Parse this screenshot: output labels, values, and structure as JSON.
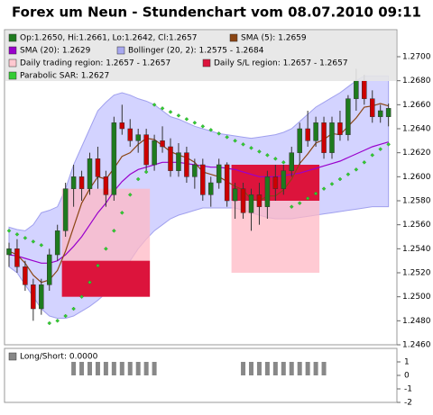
{
  "chart_data": [
    {
      "type": "candlestick",
      "title": "Forex um Neun - Stundenchart vom 08.07.2010 09:11",
      "legend": [
        {
          "text": "Op:1.2650, Hi:1.2661, Lo:1.2642, Cl:1.2657",
          "color": "#1e7b1e"
        },
        {
          "text": "SMA (5): 1.2659",
          "color": "#8b4513"
        },
        {
          "text": "SMA (20): 1.2629",
          "color": "#9900cc"
        },
        {
          "text": "Bollinger (20, 2): 1.2575 - 1.2684",
          "color": "#a8a8f0"
        },
        {
          "text": "Daily trading region: 1.2657 - 1.2657",
          "color": "#ffc8d0"
        },
        {
          "text": "Daily S/L region: 1.2657 - 1.2657",
          "color": "#dc143c"
        },
        {
          "text": "Parabolic SAR: 1.2627",
          "color": "#33cc33"
        }
      ],
      "up_color": "#1e7b1e",
      "down_color": "#cc0000",
      "open": [
        1.2535,
        1.254,
        1.2525,
        1.251,
        1.249,
        1.251,
        1.2535,
        1.2555,
        1.259,
        1.26,
        1.259,
        1.2615,
        1.26,
        1.2585,
        1.2645,
        1.264,
        1.263,
        1.2635,
        1.261,
        1.263,
        1.2625,
        1.2605,
        1.262,
        1.26,
        1.261,
        1.2585,
        1.2595,
        1.261,
        1.258,
        1.259,
        1.257,
        1.2585,
        1.2575,
        1.26,
        1.259,
        1.2605,
        1.262,
        1.264,
        1.263,
        1.2645,
        1.262,
        1.2645,
        1.2635,
        1.2665,
        1.268,
        1.2665,
        1.265,
        1.265
      ],
      "high": [
        1.2545,
        1.2548,
        1.253,
        1.2515,
        1.2515,
        1.254,
        1.256,
        1.2595,
        1.261,
        1.2605,
        1.262,
        1.2625,
        1.2605,
        1.265,
        1.266,
        1.2648,
        1.264,
        1.264,
        1.2635,
        1.2642,
        1.2632,
        1.2628,
        1.2625,
        1.2615,
        1.2615,
        1.26,
        1.2615,
        1.2612,
        1.2595,
        1.2595,
        1.259,
        1.2595,
        1.2605,
        1.261,
        1.261,
        1.2625,
        1.2645,
        1.2655,
        1.265,
        1.265,
        1.265,
        1.2655,
        1.2668,
        1.269,
        1.2685,
        1.2672,
        1.266,
        1.2661
      ],
      "low": [
        1.2525,
        1.252,
        1.2505,
        1.248,
        1.2485,
        1.2505,
        1.253,
        1.255,
        1.2575,
        1.258,
        1.2585,
        1.259,
        1.2575,
        1.258,
        1.2635,
        1.2625,
        1.262,
        1.2605,
        1.2605,
        1.262,
        1.26,
        1.26,
        1.2595,
        1.259,
        1.258,
        1.2575,
        1.259,
        1.2575,
        1.2565,
        1.2565,
        1.2555,
        1.256,
        1.2565,
        1.258,
        1.2585,
        1.26,
        1.261,
        1.2625,
        1.2625,
        1.2615,
        1.2615,
        1.263,
        1.263,
        1.2655,
        1.266,
        1.2645,
        1.2645,
        1.2642
      ],
      "close": [
        1.254,
        1.2525,
        1.251,
        1.249,
        1.251,
        1.2535,
        1.2555,
        1.259,
        1.26,
        1.259,
        1.2615,
        1.26,
        1.2585,
        1.2645,
        1.264,
        1.263,
        1.2635,
        1.261,
        1.263,
        1.2625,
        1.2605,
        1.262,
        1.26,
        1.261,
        1.2585,
        1.2595,
        1.261,
        1.258,
        1.259,
        1.257,
        1.2585,
        1.2575,
        1.26,
        1.259,
        1.2605,
        1.262,
        1.264,
        1.263,
        1.2645,
        1.262,
        1.2645,
        1.2635,
        1.2665,
        1.268,
        1.2665,
        1.265,
        1.2655,
        1.2657
      ],
      "sma5": {
        "color": "#8b4513",
        "values": [
          1.2538,
          1.2535,
          1.2528,
          1.2518,
          1.2512,
          1.2514,
          1.2522,
          1.2538,
          1.2558,
          1.2578,
          1.259,
          1.26,
          1.2598,
          1.2607,
          1.2617,
          1.262,
          1.2627,
          1.2632,
          1.2631,
          1.2626,
          1.2621,
          1.2618,
          1.2616,
          1.2612,
          1.2604,
          1.2602,
          1.26,
          1.2596,
          1.2592,
          1.2589,
          1.2581,
          1.258,
          1.2584,
          1.2584,
          1.2589,
          1.2598,
          1.2611,
          1.2619,
          1.2628,
          1.2631,
          1.2636,
          1.2635,
          1.2642,
          1.2649,
          1.2658,
          1.2659,
          1.2661,
          1.2659
        ]
      },
      "sma20": {
        "color": "#9900cc",
        "values": [
          1.2535,
          1.2534,
          1.2532,
          1.253,
          1.2528,
          1.2528,
          1.253,
          1.2535,
          1.2542,
          1.255,
          1.256,
          1.257,
          1.2578,
          1.2588,
          1.2596,
          1.2602,
          1.2606,
          1.2608,
          1.261,
          1.2612,
          1.2612,
          1.2612,
          1.2611,
          1.261,
          1.2609,
          1.2608,
          1.2608,
          1.2607,
          1.2606,
          1.2604,
          1.2602,
          1.26,
          1.26,
          1.26,
          1.2601,
          1.2602,
          1.2603,
          1.2605,
          1.2607,
          1.2609,
          1.2611,
          1.2613,
          1.2616,
          1.2619,
          1.2622,
          1.2625,
          1.2627,
          1.2629
        ]
      },
      "bollinger": {
        "color": "#c8c8ff",
        "stroke": "#a0a0ee",
        "upper": [
          1.2558,
          1.2556,
          1.2555,
          1.256,
          1.257,
          1.2572,
          1.2575,
          1.259,
          1.261,
          1.2625,
          1.264,
          1.2655,
          1.2662,
          1.2668,
          1.267,
          1.2668,
          1.2665,
          1.2663,
          1.266,
          1.2655,
          1.265,
          1.2648,
          1.2645,
          1.2642,
          1.264,
          1.2638,
          1.2636,
          1.2635,
          1.2634,
          1.2633,
          1.2632,
          1.2633,
          1.2634,
          1.2635,
          1.2637,
          1.264,
          1.2646,
          1.2652,
          1.2658,
          1.2662,
          1.2666,
          1.267,
          1.2675,
          1.268,
          1.2684,
          1.2684,
          1.2684,
          1.2684
        ],
        "lower": [
          1.2525,
          1.252,
          1.251,
          1.25,
          1.249,
          1.2484,
          1.2482,
          1.2482,
          1.2484,
          1.2488,
          1.2492,
          1.2497,
          1.2503,
          1.251,
          1.252,
          1.253,
          1.254,
          1.2548,
          1.2555,
          1.256,
          1.2565,
          1.2568,
          1.257,
          1.2572,
          1.2574,
          1.2574,
          1.2574,
          1.2574,
          1.2574,
          1.2572,
          1.257,
          1.2568,
          1.2566,
          1.2565,
          1.2565,
          1.2565,
          1.2566,
          1.2567,
          1.2568,
          1.2569,
          1.257,
          1.2571,
          1.2572,
          1.2573,
          1.2574,
          1.2575,
          1.2575,
          1.2575
        ]
      },
      "sar": {
        "color": "#33cc33",
        "values": [
          1.2555,
          1.2552,
          1.2549,
          1.2546,
          1.2543,
          1.2478,
          1.248,
          1.2484,
          1.249,
          1.25,
          1.2512,
          1.2526,
          1.254,
          1.2555,
          1.257,
          1.2585,
          1.2598,
          1.2604,
          1.266,
          1.2657,
          1.2654,
          1.2651,
          1.2648,
          1.2645,
          1.2642,
          1.2639,
          1.2636,
          1.2633,
          1.263,
          1.2627,
          1.2624,
          1.2621,
          1.2618,
          1.2615,
          1.2612,
          1.2575,
          1.2578,
          1.2582,
          1.2586,
          1.259,
          1.2594,
          1.2598,
          1.2602,
          1.2606,
          1.2612,
          1.2618,
          1.2623,
          1.2627
        ]
      },
      "regions": [
        {
          "start": 7,
          "end": 17,
          "low": 1.25,
          "high": 1.259,
          "color": "#ffb8c4"
        },
        {
          "start": 7,
          "end": 17,
          "low": 1.25,
          "high": 1.253,
          "color": "#dc143c"
        },
        {
          "start": 28,
          "end": 38,
          "low": 1.252,
          "high": 1.261,
          "color": "#ffb8c4"
        },
        {
          "start": 28,
          "end": 38,
          "low": 1.258,
          "high": 1.261,
          "color": "#dc143c"
        }
      ],
      "ylim": [
        1.246,
        1.27225
      ],
      "yticks": [
        {
          "value": 1.246,
          "label": "1.2460"
        },
        {
          "value": 1.248,
          "label": "1.2480"
        },
        {
          "value": 1.25,
          "label": "1.2500"
        },
        {
          "value": 1.252,
          "label": "1.2520"
        },
        {
          "value": 1.254,
          "label": "1.2540"
        },
        {
          "value": 1.256,
          "label": "1.2560"
        },
        {
          "value": 1.258,
          "label": "1.2580"
        },
        {
          "value": 1.26,
          "label": "1.2600"
        },
        {
          "value": 1.262,
          "label": "1.2620"
        },
        {
          "value": 1.264,
          "label": "1.2640"
        },
        {
          "value": 1.266,
          "label": "1.2660"
        },
        {
          "value": 1.268,
          "label": "1.2680"
        },
        {
          "value": 1.27,
          "label": "1.2700"
        }
      ]
    },
    {
      "type": "bar",
      "legend": [
        {
          "text": "Long/Short: 0.0000",
          "color": "#888888"
        }
      ],
      "color": "#888888",
      "values": [
        0,
        0,
        0,
        0,
        0,
        0,
        0,
        0,
        1,
        1,
        1,
        1,
        1,
        1,
        1,
        1,
        1,
        1,
        1,
        0,
        0,
        0,
        0,
        0,
        0,
        0,
        0,
        0,
        0,
        1,
        1,
        1,
        1,
        1,
        1,
        1,
        1,
        1,
        1,
        1,
        0,
        0,
        0,
        0,
        0,
        0,
        0,
        0
      ],
      "ylim": [
        -2,
        2
      ],
      "yticks": [
        1,
        0,
        -1,
        -2
      ]
    }
  ]
}
